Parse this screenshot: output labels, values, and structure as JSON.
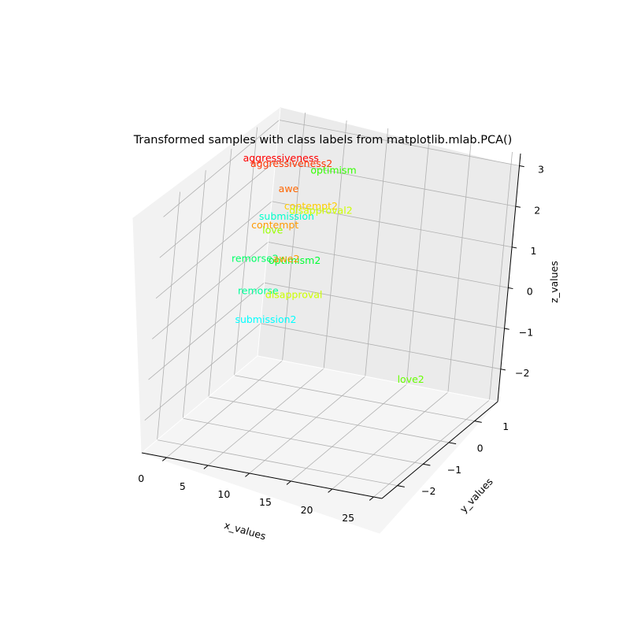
{
  "chart_data": {
    "type": "scatter",
    "subtype": "3d-text-scatter",
    "title": "Transformed samples with class labels from matplotlib.mlab.PCA()",
    "xlabel": "x_values",
    "ylabel": "y_values",
    "zlabel": "z_values",
    "xlim": [
      -3,
      26
    ],
    "ylim": [
      -2.6,
      1.9
    ],
    "zlim": [
      -2.8,
      3.3
    ],
    "xticks": [
      "0",
      "5",
      "10",
      "15",
      "20",
      "25"
    ],
    "yticks": [
      "−2",
      "−1",
      "0",
      "1"
    ],
    "zticks": [
      "−2",
      "−1",
      "0",
      "1",
      "2",
      "3"
    ],
    "grid": true,
    "legend": "none",
    "points": [
      {
        "label": "aggressiveness",
        "x": -1.5,
        "y": 1.6,
        "z": 2.2,
        "color": "#ff0000"
      },
      {
        "label": "aggressiveness2",
        "x": 1.5,
        "y": 1.0,
        "z": 2.5,
        "color": "#ff3300"
      },
      {
        "label": "awe",
        "x": 2.0,
        "y": 0.8,
        "z": 2.0,
        "color": "#ff6600"
      },
      {
        "label": "optimism",
        "x": 6.0,
        "y": 1.2,
        "z": 2.4,
        "color": "#33ff00"
      },
      {
        "label": "contempt",
        "x": 0.5,
        "y": 0.9,
        "z": 1.0,
        "color": "#ff9900"
      },
      {
        "label": "contempt2",
        "x": 4.0,
        "y": 1.1,
        "z": 1.5,
        "color": "#ffcc00"
      },
      {
        "label": "submission",
        "x": 1.5,
        "y": 1.0,
        "z": 1.2,
        "color": "#00ffcc"
      },
      {
        "label": "disapproval2",
        "x": 5.5,
        "y": 1.0,
        "z": 1.5,
        "color": "#ccff00"
      },
      {
        "label": "love",
        "x": 0.0,
        "y": 1.0,
        "z": 0.8,
        "color": "#99ff00"
      },
      {
        "label": "remorse2",
        "x": -1.5,
        "y": 0.9,
        "z": 0.1,
        "color": "#00ff66"
      },
      {
        "label": "optimism2",
        "x": 3.5,
        "y": 0.8,
        "z": 0.3,
        "color": "#00ff33"
      },
      {
        "label": "awe2",
        "x": 2.5,
        "y": 0.8,
        "z": 0.3,
        "color": "#ff9900"
      },
      {
        "label": "remorse",
        "x": -0.5,
        "y": 0.8,
        "z": -0.6,
        "color": "#00ff99"
      },
      {
        "label": "disapproval",
        "x": 3.5,
        "y": 0.9,
        "z": -0.6,
        "color": "#ccff00"
      },
      {
        "label": "submission2",
        "x": 1.0,
        "y": 0.7,
        "z": -1.2,
        "color": "#00ffff"
      },
      {
        "label": "love2",
        "x": 24.5,
        "y": -1.3,
        "z": -0.7,
        "color": "#66ff00"
      }
    ]
  }
}
